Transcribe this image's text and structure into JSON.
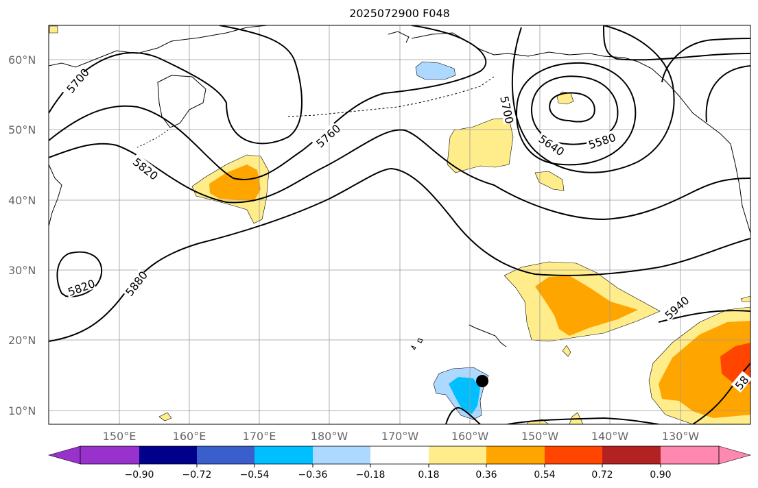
{
  "title": "2025072900 F048",
  "map": {
    "lat_labels": [
      "60°N",
      "50°N",
      "40°N",
      "30°N",
      "20°N",
      "10°N"
    ],
    "lon_labels": [
      "150°E",
      "160°E",
      "170°E",
      "180°W",
      "170°W",
      "160°W",
      "150°W",
      "140°W",
      "130°W"
    ],
    "contour_labels": [
      "5700",
      "5760",
      "5820",
      "5700",
      "5640",
      "5580",
      "5820",
      "5880",
      "5940",
      "58"
    ],
    "colors": {
      "contour": "#000000",
      "coast": "#000000",
      "grid": "#999999",
      "yellow": "#ffec8b",
      "orange": "#ffa500",
      "red_orange": "#ff4500",
      "light_blue": "#add8ff",
      "cyan": "#00bfff"
    },
    "marker": "storm-center-dot"
  },
  "colorbar": {
    "ticks": [
      "−0.90",
      "−0.72",
      "−0.54",
      "−0.36",
      "−0.18",
      "0.18",
      "0.36",
      "0.54",
      "0.72",
      "0.90"
    ],
    "colors": [
      "#9932cc",
      "#00008b",
      "#3a5fcd",
      "#00bfff",
      "#add8ff",
      "#ffffff",
      "#ffec8b",
      "#ffa500",
      "#ff4500",
      "#b22222",
      "#ff88b0"
    ]
  }
}
